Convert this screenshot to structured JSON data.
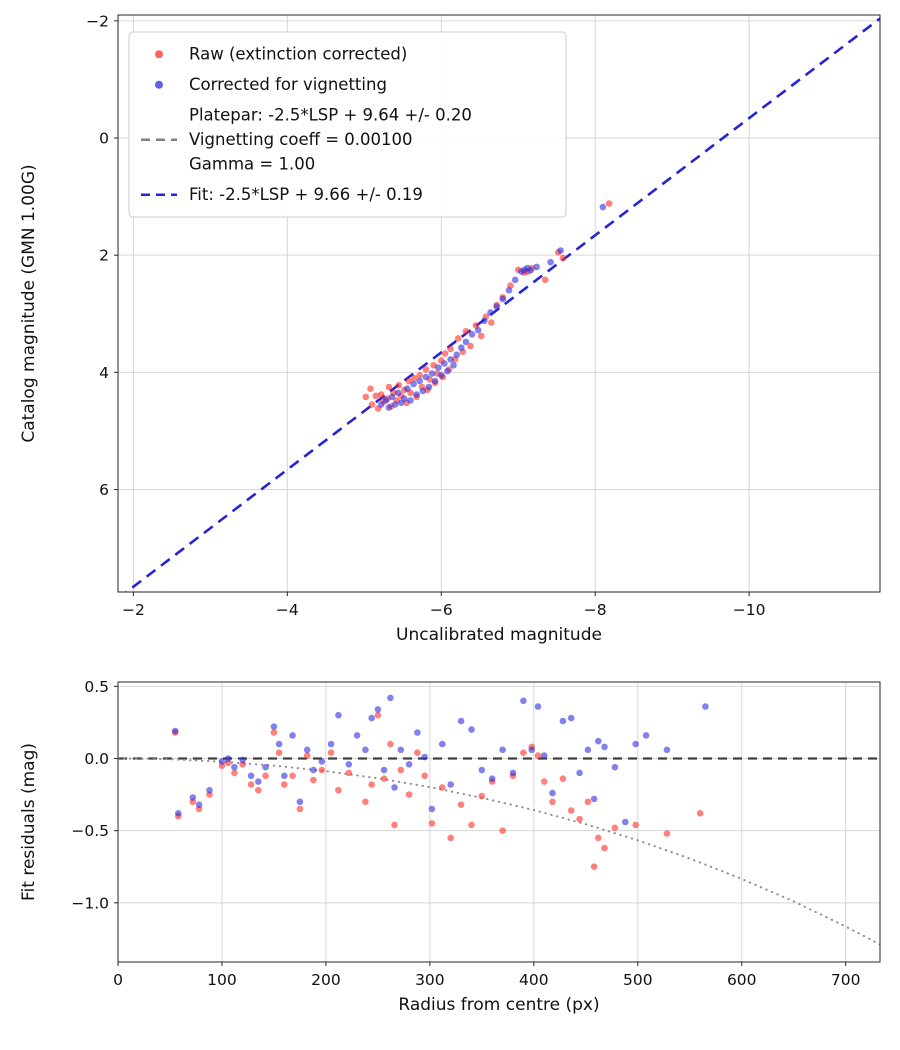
{
  "figure": {
    "background": "#ffffff",
    "grid_color": "#d6d6d6",
    "border_color": "#262626",
    "text_color": "#111111"
  },
  "chart_data": [
    {
      "type": "scatter",
      "name": "calibration-plot",
      "xlabel": "Uncalibrated magnitude",
      "ylabel": "Catalog magnitude (GMN 1.00G)",
      "xlim": [
        -1.8,
        -11.7
      ],
      "ylim": [
        -2.1,
        7.75
      ],
      "x_ticks": [
        -2,
        -4,
        -6,
        -8,
        -10
      ],
      "x_tick_labels": [
        "−2",
        "−4",
        "−6",
        "−8",
        "−10"
      ],
      "y_ticks": [
        -2,
        0,
        2,
        4,
        6
      ],
      "y_tick_labels": [
        "−2",
        "0",
        "2",
        "4",
        "6"
      ],
      "grid": true,
      "axes_inverted": true,
      "fit_line": {
        "slope": 1,
        "intercept": 9.66,
        "color": "#2525d6",
        "style": "dashed"
      },
      "legend": {
        "position": "upper-left",
        "entries": [
          {
            "marker": "dot",
            "color": "#ff2d23",
            "label": "Raw (extinction corrected)"
          },
          {
            "marker": "dot",
            "color": "#2e2ee0",
            "label": "Corrected for vignetting"
          },
          {
            "marker": "dashed-line",
            "color": "#808080",
            "label": "Platepar: -2.5*LSP + 9.64 +/- 0.20\nVignetting coeff = 0.00100\nGamma = 1.00"
          },
          {
            "marker": "dashed-line",
            "color": "#2525d6",
            "label": "Fit: -2.5*LSP + 9.66 +/- 0.19"
          }
        ]
      },
      "series": [
        {
          "name": "Raw (extinction corrected)",
          "color": "#ff2d23",
          "points": [
            [
              -5.02,
              4.42
            ],
            [
              -5.08,
              4.28
            ],
            [
              -5.1,
              4.55
            ],
            [
              -5.15,
              4.4
            ],
            [
              -5.18,
              4.62
            ],
            [
              -5.22,
              4.38
            ],
            [
              -5.25,
              4.5
            ],
            [
              -5.3,
              4.45
            ],
            [
              -5.32,
              4.25
            ],
            [
              -5.35,
              4.58
            ],
            [
              -5.38,
              4.35
            ],
            [
              -5.42,
              4.48
            ],
            [
              -5.45,
              4.22
            ],
            [
              -5.48,
              4.4
            ],
            [
              -5.52,
              4.3
            ],
            [
              -5.55,
              4.52
            ],
            [
              -5.58,
              4.15
            ],
            [
              -5.6,
              4.35
            ],
            [
              -5.65,
              4.1
            ],
            [
              -5.68,
              4.42
            ],
            [
              -5.72,
              4.05
            ],
            [
              -5.75,
              4.25
            ],
            [
              -5.8,
              3.95
            ],
            [
              -5.82,
              4.3
            ],
            [
              -5.85,
              4.12
            ],
            [
              -5.9,
              3.88
            ],
            [
              -5.92,
              4.18
            ],
            [
              -5.95,
              4.02
            ],
            [
              -6.0,
              3.8
            ],
            [
              -6.02,
              4.08
            ],
            [
              -6.05,
              3.68
            ],
            [
              -6.1,
              3.95
            ],
            [
              -6.12,
              3.6
            ],
            [
              -6.18,
              3.78
            ],
            [
              -6.22,
              3.42
            ],
            [
              -6.28,
              3.65
            ],
            [
              -6.32,
              3.3
            ],
            [
              -6.38,
              3.55
            ],
            [
              -6.45,
              3.2
            ],
            [
              -6.52,
              3.38
            ],
            [
              -6.58,
              3.05
            ],
            [
              -6.65,
              3.15
            ],
            [
              -6.72,
              2.85
            ],
            [
              -6.8,
              2.72
            ],
            [
              -6.9,
              2.52
            ],
            [
              -7.0,
              2.25
            ],
            [
              -7.08,
              2.3
            ],
            [
              -7.12,
              2.28
            ],
            [
              -7.18,
              2.22
            ],
            [
              -7.35,
              2.42
            ],
            [
              -7.52,
              1.95
            ],
            [
              -7.58,
              2.05
            ],
            [
              -8.18,
              1.12
            ]
          ]
        },
        {
          "name": "Corrected for vignetting",
          "color": "#2e2ee0",
          "points": [
            [
              -5.22,
              4.55
            ],
            [
              -5.28,
              4.48
            ],
            [
              -5.32,
              4.6
            ],
            [
              -5.36,
              4.42
            ],
            [
              -5.4,
              4.55
            ],
            [
              -5.44,
              4.35
            ],
            [
              -5.48,
              4.52
            ],
            [
              -5.52,
              4.45
            ],
            [
              -5.56,
              4.28
            ],
            [
              -5.6,
              4.48
            ],
            [
              -5.64,
              4.2
            ],
            [
              -5.68,
              4.38
            ],
            [
              -5.72,
              4.15
            ],
            [
              -5.76,
              4.32
            ],
            [
              -5.8,
              4.08
            ],
            [
              -5.84,
              4.25
            ],
            [
              -5.88,
              4.02
            ],
            [
              -5.92,
              4.15
            ],
            [
              -5.96,
              3.92
            ],
            [
              -6.0,
              4.05
            ],
            [
              -6.04,
              3.85
            ],
            [
              -6.08,
              3.98
            ],
            [
              -6.12,
              3.78
            ],
            [
              -6.16,
              3.88
            ],
            [
              -6.2,
              3.7
            ],
            [
              -6.26,
              3.58
            ],
            [
              -6.32,
              3.48
            ],
            [
              -6.4,
              3.35
            ],
            [
              -6.48,
              3.28
            ],
            [
              -6.56,
              3.12
            ],
            [
              -6.64,
              2.98
            ],
            [
              -6.72,
              2.88
            ],
            [
              -6.8,
              2.75
            ],
            [
              -6.88,
              2.6
            ],
            [
              -6.96,
              2.42
            ],
            [
              -7.04,
              2.28
            ],
            [
              -7.08,
              2.25
            ],
            [
              -7.12,
              2.22
            ],
            [
              -7.16,
              2.26
            ],
            [
              -7.24,
              2.2
            ],
            [
              -7.42,
              2.12
            ],
            [
              -7.55,
              1.92
            ],
            [
              -8.1,
              1.18
            ]
          ]
        }
      ]
    },
    {
      "type": "scatter",
      "name": "residuals-plot",
      "xlabel": "Radius from centre (px)",
      "ylabel": "Fit residuals (mag)",
      "xlim": [
        0,
        733
      ],
      "ylim": [
        0.53,
        -1.41
      ],
      "x_ticks": [
        0,
        100,
        200,
        300,
        400,
        500,
        600,
        700
      ],
      "x_tick_labels": [
        "0",
        "100",
        "200",
        "300",
        "400",
        "500",
        "600",
        "700"
      ],
      "y_ticks": [
        0.5,
        0.0,
        -0.5,
        -1.0
      ],
      "y_tick_labels": [
        "0.5",
        "0.0",
        "−0.5",
        "−1.0"
      ],
      "grid": true,
      "zero_line": {
        "y": 0,
        "color": "#404040",
        "style": "dashed"
      },
      "model_curve": {
        "color": "#909090",
        "style": "dotted",
        "points": [
          [
            0,
            0
          ],
          [
            50,
            -0.005
          ],
          [
            100,
            -0.022
          ],
          [
            150,
            -0.049
          ],
          [
            200,
            -0.087
          ],
          [
            250,
            -0.137
          ],
          [
            300,
            -0.198
          ],
          [
            350,
            -0.272
          ],
          [
            400,
            -0.357
          ],
          [
            450,
            -0.455
          ],
          [
            500,
            -0.567
          ],
          [
            550,
            -0.693
          ],
          [
            600,
            -0.834
          ],
          [
            650,
            -0.99
          ],
          [
            700,
            -1.164
          ],
          [
            733,
            -1.288
          ]
        ]
      },
      "series": [
        {
          "name": "Raw (extinction corrected)",
          "color": "#ff2d23",
          "points": [
            [
              55,
              0.18
            ],
            [
              58,
              -0.4
            ],
            [
              72,
              -0.3
            ],
            [
              78,
              -0.35
            ],
            [
              88,
              -0.25
            ],
            [
              100,
              -0.05
            ],
            [
              106,
              -0.03
            ],
            [
              112,
              -0.1
            ],
            [
              120,
              -0.04
            ],
            [
              128,
              -0.18
            ],
            [
              135,
              -0.22
            ],
            [
              142,
              -0.12
            ],
            [
              150,
              0.18
            ],
            [
              155,
              0.04
            ],
            [
              160,
              -0.18
            ],
            [
              168,
              -0.12
            ],
            [
              175,
              -0.35
            ],
            [
              182,
              0.02
            ],
            [
              188,
              -0.15
            ],
            [
              196,
              -0.08
            ],
            [
              205,
              0.04
            ],
            [
              212,
              -0.22
            ],
            [
              222,
              -0.1
            ],
            [
              238,
              -0.3
            ],
            [
              244,
              -0.18
            ],
            [
              250,
              0.3
            ],
            [
              256,
              -0.14
            ],
            [
              262,
              0.1
            ],
            [
              266,
              -0.46
            ],
            [
              272,
              -0.08
            ],
            [
              280,
              -0.25
            ],
            [
              288,
              0.04
            ],
            [
              295,
              -0.12
            ],
            [
              302,
              -0.45
            ],
            [
              312,
              -0.2
            ],
            [
              320,
              -0.55
            ],
            [
              330,
              -0.32
            ],
            [
              340,
              -0.46
            ],
            [
              350,
              -0.26
            ],
            [
              360,
              -0.16
            ],
            [
              370,
              -0.5
            ],
            [
              380,
              -0.12
            ],
            [
              390,
              0.04
            ],
            [
              398,
              0.08
            ],
            [
              404,
              0.02
            ],
            [
              410,
              -0.16
            ],
            [
              418,
              -0.3
            ],
            [
              428,
              -0.14
            ],
            [
              436,
              -0.36
            ],
            [
              444,
              -0.42
            ],
            [
              452,
              -0.3
            ],
            [
              458,
              -0.75
            ],
            [
              462,
              -0.55
            ],
            [
              468,
              -0.62
            ],
            [
              478,
              -0.48
            ],
            [
              498,
              -0.46
            ],
            [
              528,
              -0.52
            ],
            [
              560,
              -0.38
            ]
          ]
        },
        {
          "name": "Corrected for vignetting",
          "color": "#2e2ee0",
          "points": [
            [
              55,
              0.19
            ],
            [
              58,
              -0.38
            ],
            [
              72,
              -0.27
            ],
            [
              78,
              -0.32
            ],
            [
              88,
              -0.22
            ],
            [
              100,
              -0.02
            ],
            [
              106,
              0.0
            ],
            [
              112,
              -0.06
            ],
            [
              120,
              -0.01
            ],
            [
              128,
              -0.12
            ],
            [
              135,
              -0.16
            ],
            [
              142,
              -0.06
            ],
            [
              150,
              0.22
            ],
            [
              155,
              0.1
            ],
            [
              160,
              -0.12
            ],
            [
              168,
              0.16
            ],
            [
              175,
              -0.3
            ],
            [
              182,
              0.06
            ],
            [
              188,
              -0.08
            ],
            [
              196,
              -0.02
            ],
            [
              205,
              0.1
            ],
            [
              212,
              0.3
            ],
            [
              222,
              -0.04
            ],
            [
              230,
              0.16
            ],
            [
              238,
              0.06
            ],
            [
              244,
              0.28
            ],
            [
              250,
              0.34
            ],
            [
              256,
              -0.08
            ],
            [
              262,
              0.42
            ],
            [
              266,
              -0.2
            ],
            [
              272,
              0.06
            ],
            [
              280,
              -0.04
            ],
            [
              288,
              0.18
            ],
            [
              295,
              0.01
            ],
            [
              302,
              -0.35
            ],
            [
              312,
              0.1
            ],
            [
              320,
              -0.18
            ],
            [
              330,
              0.26
            ],
            [
              340,
              0.2
            ],
            [
              350,
              -0.08
            ],
            [
              360,
              -0.14
            ],
            [
              370,
              0.06
            ],
            [
              380,
              -0.1
            ],
            [
              390,
              0.4
            ],
            [
              398,
              0.06
            ],
            [
              404,
              0.36
            ],
            [
              410,
              0.02
            ],
            [
              418,
              -0.24
            ],
            [
              428,
              0.26
            ],
            [
              436,
              0.28
            ],
            [
              444,
              -0.1
            ],
            [
              452,
              0.06
            ],
            [
              458,
              -0.28
            ],
            [
              462,
              0.12
            ],
            [
              468,
              0.08
            ],
            [
              478,
              -0.06
            ],
            [
              488,
              -0.44
            ],
            [
              498,
              0.1
            ],
            [
              508,
              0.16
            ],
            [
              528,
              0.06
            ],
            [
              565,
              0.36
            ]
          ]
        }
      ]
    }
  ]
}
